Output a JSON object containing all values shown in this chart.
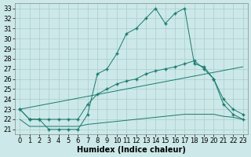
{
  "xlabel": "Humidex (Indice chaleur)",
  "line_color": "#1a7a6e",
  "bg_color": "#cce8e8",
  "grid_color": "#aacece",
  "xlim": [
    -0.5,
    23.5
  ],
  "ylim": [
    20.5,
    33.5
  ],
  "xticks": [
    0,
    1,
    2,
    3,
    4,
    5,
    6,
    7,
    8,
    9,
    10,
    11,
    12,
    13,
    14,
    15,
    16,
    17,
    18,
    19,
    20,
    21,
    22,
    23
  ],
  "yticks": [
    21,
    22,
    23,
    24,
    25,
    26,
    27,
    28,
    29,
    30,
    31,
    32,
    33
  ],
  "main_x": [
    0,
    1,
    2,
    3,
    4,
    5,
    6,
    7,
    8,
    9,
    10,
    11,
    12,
    13,
    14,
    15,
    16,
    17,
    18,
    19,
    20,
    21,
    22,
    23
  ],
  "main_y": [
    23,
    22,
    22,
    21,
    21,
    21,
    21,
    22.5,
    26.5,
    27,
    28.5,
    30.5,
    31,
    32,
    33,
    31.5,
    32.5,
    33,
    27.5,
    27.2,
    26,
    23.5,
    22.5,
    22
  ],
  "line2_x": [
    0,
    1,
    2,
    3,
    4,
    5,
    6,
    7,
    8,
    9,
    10,
    11,
    12,
    13,
    14,
    15,
    16,
    17,
    18,
    19,
    20,
    21,
    22,
    23
  ],
  "line2_y": [
    23,
    22,
    22,
    22,
    22,
    22,
    22,
    23.5,
    24.5,
    25,
    25.5,
    25.8,
    26,
    26.5,
    26.8,
    27,
    27.2,
    27.5,
    27.8,
    27,
    26,
    24,
    23,
    22.5
  ],
  "line3_x": [
    0,
    23
  ],
  "line3_y": [
    23,
    27.2
  ],
  "line4_x": [
    0,
    1,
    2,
    3,
    4,
    5,
    6,
    7,
    8,
    9,
    10,
    11,
    12,
    13,
    14,
    15,
    16,
    17,
    18,
    19,
    20,
    21,
    22,
    23
  ],
  "line4_y": [
    22,
    21.3,
    21.3,
    21.3,
    21.3,
    21.3,
    21.3,
    21.5,
    21.6,
    21.7,
    21.8,
    21.9,
    22.0,
    22.1,
    22.2,
    22.3,
    22.4,
    22.5,
    22.5,
    22.5,
    22.5,
    22.3,
    22.2,
    22
  ],
  "font_size": 6
}
